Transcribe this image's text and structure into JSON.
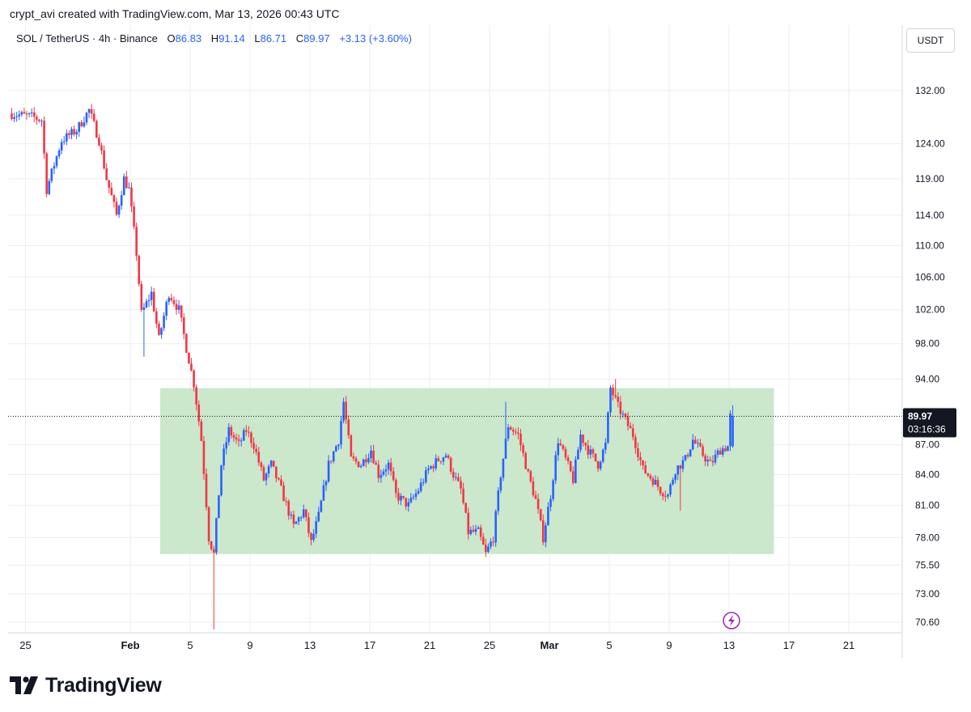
{
  "header": {
    "credit": "crypt_avi created with TradingView.com, Mar 13, 2026 00:43 UTC"
  },
  "legend": {
    "symbol": "SOL / TetherUS · 4h · Binance",
    "open_label": "O",
    "open": "86.83",
    "high_label": "H",
    "high": "91.14",
    "low_label": "L",
    "low": "86.71",
    "close_label": "C",
    "close": "89.97",
    "change": "+3.13 (+3.60%)"
  },
  "price_axis": {
    "currency": "USDT",
    "current_price": "89.97",
    "countdown": "03:16:36"
  },
  "branding": {
    "name": "TradingView"
  },
  "colors": {
    "up": "#2962ff",
    "down": "#f23645",
    "zone_fill": "#c8e6c9",
    "grid": "#eceef2",
    "alert_icon": "#9c27b0"
  },
  "icons": {
    "alert": "lightning-bolt-icon",
    "logo": "tradingview-logo-icon"
  },
  "chart_data": {
    "type": "candlestick",
    "title": "SOL / TetherUS · 4h · Binance",
    "y_scale": "log",
    "ylim": [
      70,
      140
    ],
    "y_ticks": [
      132,
      124,
      119,
      114,
      110,
      106,
      102,
      98,
      94,
      87,
      84,
      81,
      78,
      75.5,
      73,
      70.6
    ],
    "y_tick_labels": [
      "132.00",
      "124.00",
      "119.00",
      "114.00",
      "110.00",
      "106.00",
      "102.00",
      "98.00",
      "94.00",
      "87.00",
      "84.00",
      "81.00",
      "78.00",
      "75.50",
      "73.00",
      "70.60"
    ],
    "x_ticks": [
      "25",
      "Feb",
      "5",
      "9",
      "13",
      "17",
      "21",
      "25",
      "Mar",
      "5",
      "9",
      "13",
      "17",
      "21"
    ],
    "x_tick_dates": [
      "2026-01-25",
      "2026-02-01",
      "2026-02-05",
      "2026-02-09",
      "2026-02-13",
      "2026-02-17",
      "2026-02-21",
      "2026-02-25",
      "2026-03-01",
      "2026-03-05",
      "2026-03-09",
      "2026-03-13",
      "2026-03-17",
      "2026-03-21"
    ],
    "x_range": [
      "2026-01-24",
      "2026-03-26"
    ],
    "last_price": 89.97,
    "range_zone": {
      "label": "",
      "from": "2026-02-03",
      "to": "2026-03-16",
      "low": 76.5,
      "high": 93.0
    },
    "keypoints": [
      [
        "2026-01-24T00",
        128.5
      ],
      [
        "2026-01-25T12",
        128.0
      ],
      [
        "2026-01-26T04",
        127.5
      ],
      [
        "2026-01-26T12",
        117.5
      ],
      [
        "2026-01-27T12",
        124.5
      ],
      [
        "2026-01-28T12",
        126.0
      ],
      [
        "2026-01-29T08",
        129.0
      ],
      [
        "2026-01-30T00",
        124.5
      ],
      [
        "2026-01-30T12",
        119.0
      ],
      [
        "2026-01-31T04",
        114.0
      ],
      [
        "2026-01-31T16",
        119.0
      ],
      [
        "2026-02-01T00",
        117.5
      ],
      [
        "2026-02-01T12",
        109.0
      ],
      [
        "2026-02-01T20",
        101.5
      ],
      [
        "2026-02-02T12",
        104.0
      ],
      [
        "2026-02-03T00",
        98.5
      ],
      [
        "2026-02-03T16",
        104.0
      ],
      [
        "2026-02-04T08",
        102.0
      ],
      [
        "2026-02-04T20",
        97.5
      ],
      [
        "2026-02-05T08",
        93.5
      ],
      [
        "2026-02-05T20",
        87.5
      ],
      [
        "2026-02-06T08",
        78.0
      ],
      [
        "2026-02-06T16",
        76.5
      ],
      [
        "2026-02-07T04",
        85.0
      ],
      [
        "2026-02-07T16",
        88.5
      ],
      [
        "2026-02-08T08",
        87.0
      ],
      [
        "2026-02-08T20",
        88.5
      ],
      [
        "2026-02-09T08",
        87.0
      ],
      [
        "2026-02-10T00",
        83.5
      ],
      [
        "2026-02-10T12",
        85.0
      ],
      [
        "2026-02-11T04",
        82.5
      ],
      [
        "2026-02-12T00",
        79.0
      ],
      [
        "2026-02-12T16",
        80.5
      ],
      [
        "2026-02-13T04",
        77.5
      ],
      [
        "2026-02-13T16",
        80.0
      ],
      [
        "2026-02-14T08",
        85.0
      ],
      [
        "2026-02-15T00",
        87.5
      ],
      [
        "2026-02-15T08",
        91.5
      ],
      [
        "2026-02-15T20",
        85.5
      ],
      [
        "2026-02-16T12",
        85.0
      ],
      [
        "2026-02-17T04",
        86.5
      ],
      [
        "2026-02-17T16",
        84.0
      ],
      [
        "2026-02-18T08",
        85.0
      ],
      [
        "2026-02-18T20",
        82.0
      ],
      [
        "2026-02-19T16",
        81.0
      ],
      [
        "2026-02-20T08",
        82.5
      ],
      [
        "2026-02-21T00",
        84.5
      ],
      [
        "2026-02-21T16",
        85.5
      ],
      [
        "2026-02-22T04",
        86.0
      ],
      [
        "2026-02-22T16",
        84.0
      ],
      [
        "2026-02-23T04",
        82.5
      ],
      [
        "2026-02-23T16",
        78.5
      ],
      [
        "2026-02-24T08",
        78.5
      ],
      [
        "2026-02-24T20",
        76.5
      ],
      [
        "2026-02-25T08",
        78.0
      ],
      [
        "2026-02-25T20",
        84.0
      ],
      [
        "2026-02-26T08",
        89.0
      ],
      [
        "2026-02-27T00",
        88.0
      ],
      [
        "2026-02-27T16",
        84.0
      ],
      [
        "2026-02-28T04",
        81.5
      ],
      [
        "2026-02-28T16",
        78.0
      ],
      [
        "2026-03-01T04",
        82.0
      ],
      [
        "2026-03-01T16",
        87.5
      ],
      [
        "2026-03-02T04",
        85.5
      ],
      [
        "2026-03-02T16",
        83.5
      ],
      [
        "2026-03-03T04",
        88.0
      ],
      [
        "2026-03-03T16",
        86.5
      ],
      [
        "2026-03-04T08",
        85.0
      ],
      [
        "2026-03-04T20",
        87.0
      ],
      [
        "2026-03-05T04",
        93.0
      ],
      [
        "2026-03-05T16",
        91.0
      ],
      [
        "2026-03-06T04",
        89.5
      ],
      [
        "2026-03-06T16",
        88.0
      ],
      [
        "2026-03-07T08",
        84.5
      ],
      [
        "2026-03-08T00",
        83.5
      ],
      [
        "2026-03-08T12",
        82.5
      ],
      [
        "2026-03-09T00",
        82.0
      ],
      [
        "2026-03-09T12",
        84.5
      ],
      [
        "2026-03-10T04",
        85.5
      ],
      [
        "2026-03-10T16",
        87.5
      ],
      [
        "2026-03-11T08",
        86.0
      ],
      [
        "2026-03-11T20",
        85.0
      ],
      [
        "2026-03-12T12",
        86.5
      ],
      [
        "2026-03-13T00",
        86.83
      ],
      [
        "2026-03-13T04",
        89.97
      ]
    ],
    "last_candle": {
      "date": "2026-03-13T04",
      "open": 86.83,
      "high": 91.14,
      "low": 86.71,
      "close": 89.97
    },
    "wick_extremes": [
      {
        "date": "2026-02-06T12",
        "low": 70.0
      },
      {
        "date": "2026-02-01T20",
        "low": 96.5
      },
      {
        "date": "2026-02-26T00",
        "high": 91.5
      },
      {
        "date": "2026-03-05T08",
        "high": 94.0
      },
      {
        "date": "2026-03-09T16",
        "low": 80.5
      }
    ]
  }
}
